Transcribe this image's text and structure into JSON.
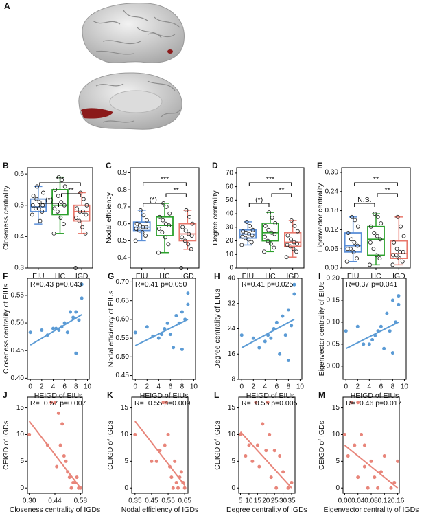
{
  "figure": {
    "panel_a": "A"
  },
  "chart_data": [
    {
      "type": "box",
      "panel": "B",
      "ylabel": "Closeness centrality",
      "categories": [
        "EIU",
        "HC",
        "IGD"
      ],
      "ylim": [
        0.3,
        0.62
      ],
      "yticks": [
        0.3,
        0.4,
        0.5,
        0.6
      ],
      "annotations": [
        "(*)",
        "**",
        "***"
      ],
      "boxes": [
        {
          "color": "#5b8fd8",
          "whisker_low": 0.44,
          "q1": 0.48,
          "median": 0.495,
          "q3": 0.52,
          "whisker_high": 0.56,
          "points": [
            0.47,
            0.48,
            0.49,
            0.49,
            0.5,
            0.5,
            0.51,
            0.52,
            0.53,
            0.54,
            0.45,
            0.56
          ]
        },
        {
          "color": "#2ca02c",
          "whisker_low": 0.41,
          "q1": 0.47,
          "median": 0.5,
          "q3": 0.55,
          "whisker_high": 0.59,
          "points": [
            0.41,
            0.44,
            0.46,
            0.48,
            0.49,
            0.5,
            0.51,
            0.53,
            0.55,
            0.56,
            0.58,
            0.59
          ]
        },
        {
          "color": "#e8776b",
          "whisker_low": 0.41,
          "q1": 0.45,
          "median": 0.48,
          "q3": 0.5,
          "whisker_high": 0.54,
          "points": [
            0.3,
            0.41,
            0.43,
            0.45,
            0.46,
            0.47,
            0.48,
            0.48,
            0.49,
            0.5,
            0.52,
            0.54
          ]
        }
      ]
    },
    {
      "type": "box",
      "panel": "C",
      "ylabel": "Nodal efficiency",
      "categories": [
        "EIU",
        "HC",
        "IGD"
      ],
      "ylim": [
        0.34,
        0.93
      ],
      "yticks": [
        0.4,
        0.5,
        0.6,
        0.7,
        0.8,
        0.9
      ],
      "annotations": [
        "(*)",
        "**",
        "***"
      ],
      "boxes": [
        {
          "color": "#5b8fd8",
          "whisker_low": 0.5,
          "q1": 0.56,
          "median": 0.58,
          "q3": 0.61,
          "whisker_high": 0.68,
          "points": [
            0.5,
            0.53,
            0.55,
            0.56,
            0.57,
            0.58,
            0.58,
            0.59,
            0.6,
            0.62,
            0.65,
            0.68
          ]
        },
        {
          "color": "#2ca02c",
          "whisker_low": 0.43,
          "q1": 0.53,
          "median": 0.59,
          "q3": 0.64,
          "whisker_high": 0.72,
          "points": [
            0.43,
            0.48,
            0.52,
            0.55,
            0.57,
            0.59,
            0.6,
            0.62,
            0.64,
            0.66,
            0.7,
            0.72
          ]
        },
        {
          "color": "#e8776b",
          "whisker_low": 0.45,
          "q1": 0.5,
          "median": 0.54,
          "q3": 0.6,
          "whisker_high": 0.68,
          "points": [
            0.34,
            0.45,
            0.48,
            0.5,
            0.52,
            0.53,
            0.54,
            0.56,
            0.58,
            0.6,
            0.64,
            0.68
          ]
        }
      ]
    },
    {
      "type": "box",
      "panel": "D",
      "ylabel": "Degree centrality",
      "categories": [
        "EIU",
        "HC",
        "IGD"
      ],
      "ylim": [
        0,
        74
      ],
      "yticks": [
        0,
        10,
        20,
        30,
        40,
        50,
        60,
        70
      ],
      "annotations": [
        "(*)",
        "**",
        "***"
      ],
      "boxes": [
        {
          "color": "#5b8fd8",
          "whisker_low": 17,
          "q1": 22,
          "median": 25,
          "q3": 28,
          "whisker_high": 34,
          "points": [
            17,
            19,
            21,
            22,
            23,
            24,
            25,
            26,
            27,
            28,
            31,
            34
          ]
        },
        {
          "color": "#2ca02c",
          "whisker_low": 12,
          "q1": 20,
          "median": 26,
          "q3": 33,
          "whisker_high": 41,
          "points": [
            12,
            15,
            18,
            20,
            23,
            25,
            26,
            28,
            31,
            33,
            37,
            41
          ]
        },
        {
          "color": "#e8776b",
          "whisker_low": 8,
          "q1": 16,
          "median": 19,
          "q3": 26,
          "whisker_high": 35,
          "points": [
            8,
            12,
            14,
            16,
            17,
            18,
            19,
            21,
            24,
            27,
            31,
            35
          ]
        }
      ]
    },
    {
      "type": "box",
      "panel": "E",
      "ylabel": "Eigenvector centrality",
      "categories": [
        "EIU",
        "HC",
        "IGD"
      ],
      "ylim": [
        0,
        0.315
      ],
      "yticks": [
        {
          "value": 0,
          "label": "0.00"
        },
        0.06,
        0.12,
        0.18,
        0.24,
        {
          "value": 0.3,
          "label": "0.30"
        }
      ],
      "annotations": [
        "N.S.",
        "**",
        "**"
      ],
      "boxes": [
        {
          "color": "#5b8fd8",
          "whisker_low": 0.02,
          "q1": 0.05,
          "median": 0.07,
          "q3": 0.11,
          "whisker_high": 0.16,
          "points": [
            0.02,
            0.03,
            0.05,
            0.06,
            0.06,
            0.07,
            0.08,
            0.09,
            0.11,
            0.13,
            0.15,
            0.16
          ]
        },
        {
          "color": "#2ca02c",
          "whisker_low": 0.01,
          "q1": 0.04,
          "median": 0.09,
          "q3": 0.13,
          "whisker_high": 0.17,
          "points": [
            0.01,
            0.03,
            0.04,
            0.06,
            0.08,
            0.09,
            0.1,
            0.11,
            0.13,
            0.14,
            0.16,
            0.17
          ]
        },
        {
          "color": "#e8776b",
          "whisker_low": 0.01,
          "q1": 0.03,
          "median": 0.045,
          "q3": 0.085,
          "whisker_high": 0.16,
          "points": [
            0.01,
            0.02,
            0.03,
            0.04,
            0.04,
            0.05,
            0.05,
            0.06,
            0.08,
            0.1,
            0.13,
            0.16
          ]
        }
      ]
    },
    {
      "type": "scatter",
      "panel": "F",
      "annotation": "R=0.43 p=0.043",
      "xlabel": "HEIGD of EIUs",
      "ylabel": "Closeness centrality of EIUs",
      "color": "#5b9bd5",
      "xlim": [
        -0.5,
        10.3
      ],
      "xticks": [
        0,
        2,
        4,
        6,
        8,
        10
      ],
      "ylim": [
        0.398,
        0.581
      ],
      "yticks": [
        {
          "value": 0.4,
          "label": "0.40"
        },
        0.45,
        {
          "value": 0.5,
          "label": "0.50"
        },
        0.55
      ],
      "x": [
        0,
        2,
        3,
        4,
        4.5,
        5,
        5.5,
        6,
        6.5,
        7,
        7.5,
        8,
        8,
        8.5,
        9,
        9
      ],
      "y": [
        0.483,
        0.487,
        0.478,
        0.49,
        0.49,
        0.487,
        0.493,
        0.5,
        0.483,
        0.52,
        0.51,
        0.445,
        0.52,
        0.505,
        0.57,
        0.545
      ],
      "fit": {
        "x": [
          0,
          9
        ],
        "y": [
          0.46,
          0.515
        ]
      }
    },
    {
      "type": "scatter",
      "panel": "G",
      "annotation": "R=0.41 p=0.050",
      "xlabel": "HEIGD of EIUs",
      "ylabel": "Nodal efficiency of EIUs",
      "color": "#5b9bd5",
      "xlim": [
        -0.5,
        10.3
      ],
      "xticks": [
        0,
        2,
        4,
        6,
        8,
        10
      ],
      "ylim": [
        0.44,
        0.71
      ],
      "yticks": [
        0.45,
        {
          "value": 0.5,
          "label": "0.50"
        },
        0.55,
        {
          "value": 0.6,
          "label": "0.60"
        },
        0.65,
        {
          "value": 0.7,
          "label": "0.70"
        }
      ],
      "x": [
        0,
        2,
        3,
        4,
        4.5,
        5,
        5.5,
        6,
        6.5,
        7,
        7.5,
        8,
        8,
        8.5,
        9,
        9
      ],
      "y": [
        0.565,
        0.58,
        0.555,
        0.55,
        0.56,
        0.575,
        0.59,
        0.56,
        0.525,
        0.61,
        0.59,
        0.52,
        0.62,
        0.6,
        0.67,
        0.64
      ],
      "fit": {
        "x": [
          0,
          9
        ],
        "y": [
          0.53,
          0.6
        ]
      }
    },
    {
      "type": "scatter",
      "panel": "H",
      "annotation": "R=0.41 p=0.025",
      "xlabel": "HEIGD of EIUs",
      "ylabel": "Degree centrality of EIUs",
      "color": "#5b9bd5",
      "xlim": [
        -0.5,
        10.3
      ],
      "xticks": [
        0,
        2,
        4,
        6,
        8,
        10
      ],
      "ylim": [
        8,
        40
      ],
      "yticks": [
        8,
        16,
        24,
        32,
        40
      ],
      "x": [
        0,
        2,
        3,
        4,
        4.5,
        5,
        5.5,
        6,
        6.5,
        7,
        7.5,
        8,
        8,
        8.5,
        9,
        9
      ],
      "y": [
        22,
        21,
        18,
        20,
        22,
        21,
        24,
        26,
        16,
        28,
        22,
        14,
        30,
        25,
        38,
        35
      ],
      "fit": {
        "x": [
          0,
          9
        ],
        "y": [
          18,
          27
        ]
      }
    },
    {
      "type": "scatter",
      "panel": "I",
      "annotation": "R=0.37 p=0.041",
      "xlabel": "HEIGD of EIUs",
      "ylabel": "Eigenvector centrality of EIUs",
      "color": "#5b9bd5",
      "xlim": [
        -0.5,
        10.3
      ],
      "xticks": [
        0,
        2,
        4,
        6,
        8,
        10
      ],
      "ylim": [
        -0.03,
        0.2
      ],
      "yticks": [
        {
          "value": 0,
          "label": "0.00"
        },
        0.05,
        {
          "value": 0.1,
          "label": "0.10"
        },
        0.15,
        {
          "value": 0.2,
          "label": "0.20"
        }
      ],
      "x": [
        0,
        2,
        3,
        4,
        4.5,
        5,
        5.5,
        6,
        6.5,
        7,
        7.5,
        8,
        8,
        8.5,
        9,
        9
      ],
      "y": [
        0.08,
        0.09,
        0.05,
        0.05,
        0.06,
        0.07,
        0.08,
        0.09,
        0.04,
        0.12,
        0.08,
        0.03,
        0.15,
        0.1,
        0.16,
        0.14
      ],
      "fit": {
        "x": [
          0,
          9
        ],
        "y": [
          0.04,
          0.1
        ]
      }
    },
    {
      "type": "scatter",
      "panel": "J",
      "annotation": "R=−0.57 p=0.007",
      "xlabel": "Closeness centrality of IGDs",
      "ylabel": "CEIGD of IGDs",
      "color": "#e8857a",
      "xlim": [
        0.29,
        0.59
      ],
      "xticks": [
        {
          "value": 0.3,
          "label": "0.30"
        },
        0.44,
        0.58
      ],
      "ylim": [
        -1,
        17
      ],
      "yticks": [
        0,
        5,
        10,
        15
      ],
      "x": [
        0.3,
        0.4,
        0.42,
        0.44,
        0.45,
        0.46,
        0.47,
        0.48,
        0.49,
        0.5,
        0.51,
        0.52,
        0.53,
        0.54,
        0.55,
        0.56,
        0.57,
        0.58
      ],
      "y": [
        10,
        8,
        16,
        16,
        4,
        14,
        8,
        12,
        6,
        5,
        3,
        2,
        0,
        1,
        1,
        2,
        0,
        0
      ],
      "fit": {
        "x": [
          0.3,
          0.58
        ],
        "y": [
          12.5,
          0
        ]
      }
    },
    {
      "type": "scatter",
      "panel": "K",
      "annotation": "R=−0.55 p=0.009",
      "xlabel": "Nodal efficiency of IGDs",
      "ylabel": "CEIGD of IGDs",
      "color": "#e8857a",
      "xlim": [
        0.33,
        0.67
      ],
      "xticks": [
        0.35,
        0.45,
        0.55,
        0.65
      ],
      "ylim": [
        -1,
        17
      ],
      "yticks": [
        0,
        5,
        10,
        15
      ],
      "x": [
        0.35,
        0.45,
        0.48,
        0.5,
        0.52,
        0.53,
        0.54,
        0.55,
        0.56,
        0.57,
        0.58,
        0.59,
        0.6,
        0.61,
        0.62,
        0.63,
        0.64,
        0.65
      ],
      "y": [
        10,
        5,
        5,
        7,
        16,
        8,
        16,
        10,
        4,
        2,
        0,
        5,
        1,
        0,
        2,
        3,
        1,
        0
      ],
      "fit": {
        "x": [
          0.35,
          0.65
        ],
        "y": [
          12.5,
          0.5
        ]
      }
    },
    {
      "type": "scatter",
      "panel": "L",
      "annotation": "R=−0.55 p=0.005",
      "xlabel": "Degree centrality of IGDs",
      "ylabel": "CEIGD of IGDs",
      "color": "#e8857a",
      "xlim": [
        4,
        37
      ],
      "xticks": [
        5,
        10,
        15,
        20,
        25,
        30,
        35
      ],
      "ylim": [
        -1,
        17
      ],
      "yticks": [
        0,
        5,
        10,
        15
      ],
      "x": [
        5,
        8,
        10,
        12,
        14,
        15,
        16,
        18,
        20,
        21,
        22,
        23,
        25,
        26,
        28,
        30,
        33,
        35
      ],
      "y": [
        10,
        6,
        8,
        5,
        16,
        8,
        4,
        12,
        7,
        16,
        10,
        2,
        7,
        0,
        6,
        3,
        0,
        1
      ],
      "fit": {
        "x": [
          5,
          35
        ],
        "y": [
          10.5,
          0
        ]
      }
    },
    {
      "type": "scatter",
      "panel": "M",
      "annotation": "R=−0.46 p=0.017",
      "xlabel": "Eigenvector centrality of IGDs",
      "ylabel": "CEIGD of IGDs",
      "color": "#e8857a",
      "xlim": [
        -0.005,
        0.165
      ],
      "xticks": [
        {
          "value": 0,
          "label": "0.00"
        },
        0.04,
        0.08,
        0.12,
        0.16
      ],
      "ylim": [
        -1,
        17
      ],
      "yticks": [
        0,
        5,
        10,
        15
      ],
      "x": [
        0,
        0.01,
        0.02,
        0.03,
        0.04,
        0.04,
        0.05,
        0.06,
        0.06,
        0.07,
        0.08,
        0.09,
        0.1,
        0.11,
        0.12,
        0.14,
        0.15,
        0.16
      ],
      "y": [
        10,
        6,
        16,
        8,
        16,
        2,
        10,
        4,
        8,
        0,
        5,
        2,
        0,
        3,
        6,
        0,
        1,
        5
      ],
      "fit": {
        "x": [
          0,
          0.16
        ],
        "y": [
          8,
          0
        ]
      }
    }
  ]
}
